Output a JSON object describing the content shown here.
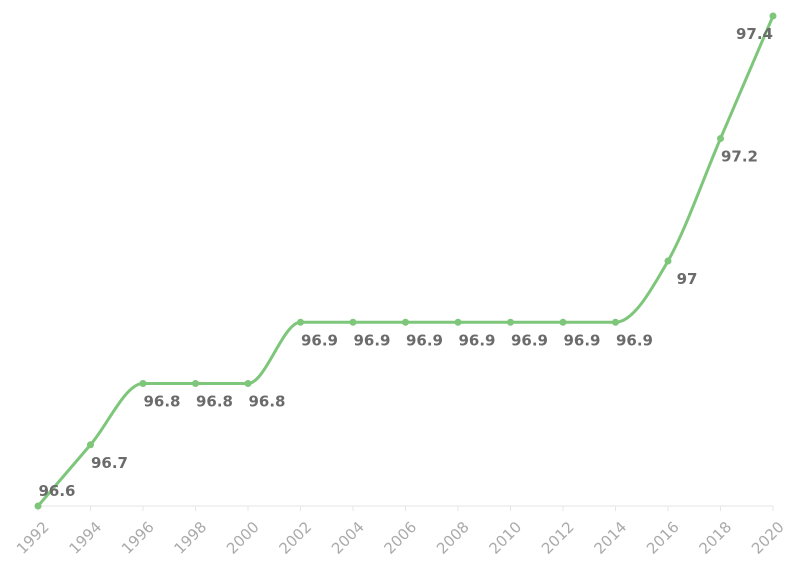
{
  "chart_data": {
    "type": "line",
    "x": [
      1992,
      1994,
      1996,
      1998,
      2000,
      2002,
      2004,
      2006,
      2008,
      2010,
      2012,
      2014,
      2016,
      2018,
      2020
    ],
    "values": [
      96.6,
      96.7,
      96.8,
      96.8,
      96.8,
      96.9,
      96.9,
      96.9,
      96.9,
      96.9,
      96.9,
      96.9,
      97,
      97.2,
      97.4
    ],
    "xlim": [
      1992,
      2020
    ],
    "xticks": [
      1992,
      1994,
      1996,
      1998,
      2000,
      2002,
      2004,
      2006,
      2008,
      2010,
      2012,
      2014,
      2016,
      2018,
      2020
    ],
    "color": "#7dc67a"
  }
}
